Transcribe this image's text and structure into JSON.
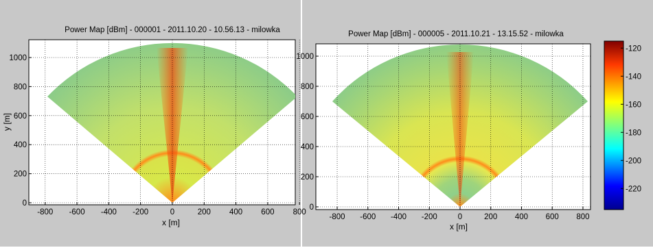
{
  "panels": [
    {
      "title": "Power Map [dBm] - 000001 - 2011.10.20 - 10.56.13 - milowka",
      "xlabel": "x [m]",
      "ylabel": "y [m]",
      "x_ticks": [
        "-800",
        "-600",
        "-400",
        "-200",
        "0",
        "200",
        "400",
        "600",
        "800"
      ],
      "y_ticks": [
        "0",
        "200",
        "400",
        "600",
        "800",
        "1000"
      ]
    },
    {
      "title": "Power Map [dBm] - 000005 - 2011.10.21 - 13.15.52 - milowka",
      "xlabel": "x [m]",
      "ylabel": "",
      "x_ticks": [
        "-800",
        "-600",
        "-400",
        "-200",
        "0",
        "200",
        "400",
        "600",
        "800"
      ],
      "y_ticks": [
        "0",
        "200",
        "400",
        "600",
        "800",
        "1000"
      ]
    }
  ],
  "colorbar": {
    "ticks": [
      "-120",
      "-140",
      "-160",
      "-180",
      "-200",
      "-220"
    ]
  },
  "chart_data": [
    {
      "type": "heatmap",
      "title": "Power Map [dBm] - 000001 - 2011.10.20 - 10.56.13 - milowka",
      "xlabel": "x [m]",
      "ylabel": "y [m]",
      "xlim": [
        -850,
        850
      ],
      "ylim": [
        0,
        1100
      ],
      "grid": true,
      "sector": {
        "apex": [
          0,
          0
        ],
        "radius": 1100,
        "half_angle_deg": 50
      },
      "value_unit": "dBm",
      "dominant_levels": {
        "background": -170,
        "center_strip": -145,
        "near_ring_radius": 300
      }
    },
    {
      "type": "heatmap",
      "title": "Power Map [dBm] - 000005 - 2011.10.21 - 13.15.52 - milowka",
      "xlabel": "x [m]",
      "ylabel": "",
      "xlim": [
        -850,
        850
      ],
      "ylim": [
        0,
        1100
      ],
      "grid": true,
      "sector": {
        "apex": [
          0,
          0
        ],
        "radius": 1100,
        "half_angle_deg": 50
      },
      "value_unit": "dBm",
      "dominant_levels": {
        "background": -165,
        "center_strip": -148,
        "near_ring_radius": 300
      }
    }
  ],
  "colorbar_data": {
    "range": [
      -235,
      -115
    ],
    "colormap": "jet",
    "colors": [
      "#00008f",
      "#0000ff",
      "#00ffff",
      "#7fff7f",
      "#ffff00",
      "#ff7f00",
      "#ff0000",
      "#7f0000"
    ]
  }
}
